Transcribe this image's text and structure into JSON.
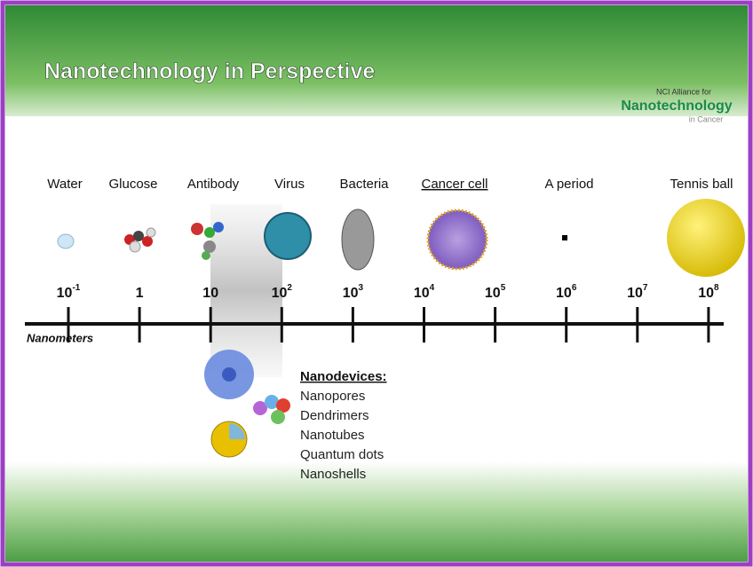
{
  "header": {
    "title": "Nanotechnology in Perspective",
    "logo": {
      "line1": "NCI Alliance for",
      "line2": "Nanotechnology",
      "line3": "in Cancer"
    }
  },
  "items": [
    "Water",
    "Glucose",
    "Antibody",
    "Virus",
    "Bacteria",
    "Cancer cell",
    "A period",
    "Tennis ball"
  ],
  "scale": {
    "label": "Nanometers",
    "ticks": [
      {
        "base": "10",
        "exp": "-1"
      },
      {
        "base": "1"
      },
      {
        "base": "10"
      },
      {
        "base": "10",
        "exp": "2"
      },
      {
        "base": "10",
        "exp": "3"
      },
      {
        "base": "10",
        "exp": "4"
      },
      {
        "base": "10",
        "exp": "5"
      },
      {
        "base": "10",
        "exp": "6"
      },
      {
        "base": "10",
        "exp": "7"
      },
      {
        "base": "10",
        "exp": "8"
      }
    ]
  },
  "nanodevices": {
    "heading": "Nanodevices:",
    "list": [
      "Nanopores",
      "Dendrimers",
      "Nanotubes",
      "Quantum dots",
      "Nanoshells"
    ]
  }
}
